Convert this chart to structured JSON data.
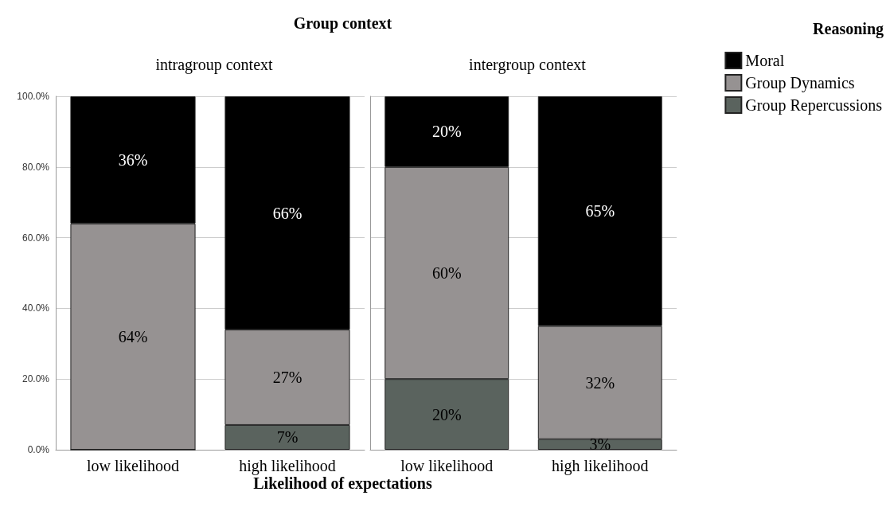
{
  "chart_data": [
    {
      "type": "bar",
      "title": "intragroup context",
      "annotations": [
        "Group context"
      ],
      "xlabel": "Likelihood of expectations",
      "categories": [
        "low likelihood",
        "high likelihood"
      ],
      "stacked": true,
      "ylim": [
        0,
        100
      ],
      "yticks": [
        {
          "value": 0,
          "label": "0.0%"
        },
        {
          "value": 20,
          "label": "20.0%"
        },
        {
          "value": 40,
          "label": "40.0%"
        },
        {
          "value": 60,
          "label": "60.0%"
        },
        {
          "value": 80,
          "label": "80.0%"
        },
        {
          "value": 100,
          "label": "100.0%"
        }
      ],
      "grid": "y",
      "legend": "top right",
      "legend_title": "Reasoning",
      "series": [
        {
          "name": "Group Repercussions",
          "color": "#5a635e",
          "values": [
            0,
            7
          ],
          "value_labels": [
            null,
            "7%"
          ]
        },
        {
          "name": "Group Dynamics",
          "color": "#969292",
          "values": [
            64,
            27
          ],
          "value_labels": [
            "64%",
            "27%"
          ]
        },
        {
          "name": "Moral",
          "color": "#000000",
          "values": [
            36,
            66
          ],
          "value_labels": [
            "36%",
            "66%"
          ]
        }
      ]
    },
    {
      "type": "bar",
      "title": "intergroup context",
      "categories": [
        "low likelihood",
        "high likelihood"
      ],
      "stacked": true,
      "ylim": [
        0,
        100
      ],
      "yticks": [
        {
          "value": 0,
          "label": null
        },
        {
          "value": 20,
          "label": null
        },
        {
          "value": 40,
          "label": null
        },
        {
          "value": 60,
          "label": null
        },
        {
          "value": 80,
          "label": null
        },
        {
          "value": 100,
          "label": null
        }
      ],
      "grid": "y",
      "tick_labels": "x",
      "series": [
        {
          "color": "#5a635e",
          "values": [
            20,
            3
          ],
          "value_labels": [
            "20%",
            "3%"
          ]
        },
        {
          "color": "#969292",
          "values": [
            60,
            32
          ],
          "value_labels": [
            "60%",
            "32%"
          ]
        },
        {
          "color": "#000000",
          "values": [
            20,
            65
          ],
          "value_labels": [
            "20%",
            "65%"
          ]
        }
      ]
    }
  ]
}
